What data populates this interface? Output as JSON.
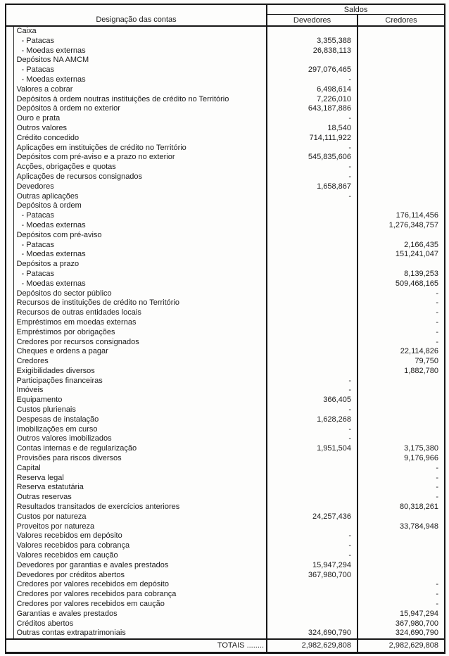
{
  "table": {
    "designacao_header": "Designação das contas",
    "saldos_header": "Saldos",
    "devedores_header": "Devedores",
    "credores_header": "Credores",
    "totals": {
      "label": "TOTAIS ........",
      "devedores": "2,982,629,808",
      "credores": "2,982,629,808"
    },
    "rows": [
      {
        "label": "Caixa",
        "indent": 0,
        "dev": "",
        "cred": ""
      },
      {
        "label": "- Patacas",
        "indent": 1,
        "dev": "3,355,388",
        "cred": ""
      },
      {
        "label": "- Moedas externas",
        "indent": 1,
        "dev": "26,838,113",
        "cred": ""
      },
      {
        "label": "Depósitos NA AMCM",
        "indent": 0,
        "dev": "",
        "cred": ""
      },
      {
        "label": "- Patacas",
        "indent": 1,
        "dev": "297,076,465",
        "cred": ""
      },
      {
        "label": "- Moedas externas",
        "indent": 1,
        "dev": "-",
        "cred": ""
      },
      {
        "label": "Valores a cobrar",
        "indent": 0,
        "dev": "6,498,614",
        "cred": ""
      },
      {
        "label": "Depósitos à ordem noutras instituições de crédito no Território",
        "indent": 0,
        "dev": "7,226,010",
        "cred": ""
      },
      {
        "label": "Depósitos à ordem no exterior",
        "indent": 0,
        "dev": "643,187,886",
        "cred": ""
      },
      {
        "label": "Ouro e prata",
        "indent": 0,
        "dev": "-",
        "cred": ""
      },
      {
        "label": "Outros valores",
        "indent": 0,
        "dev": "18,540",
        "cred": ""
      },
      {
        "label": "Crédito concedido",
        "indent": 0,
        "dev": "714,111,922",
        "cred": ""
      },
      {
        "label": "Aplicações em instituições de crédito no Território",
        "indent": 0,
        "dev": "-",
        "cred": ""
      },
      {
        "label": "Depósitos com pré-aviso e a prazo no exterior",
        "indent": 0,
        "dev": "545,835,606",
        "cred": ""
      },
      {
        "label": "Acções, obrigações e quotas",
        "indent": 0,
        "dev": "-",
        "cred": ""
      },
      {
        "label": "Aplicações de recursos consignados",
        "indent": 0,
        "dev": "-",
        "cred": ""
      },
      {
        "label": "Devedores",
        "indent": 0,
        "dev": "1,658,867",
        "cred": ""
      },
      {
        "label": "Outras aplicações",
        "indent": 0,
        "dev": "-",
        "cred": ""
      },
      {
        "label": "Depósitos à ordem",
        "indent": 0,
        "dev": "",
        "cred": ""
      },
      {
        "label": "- Patacas",
        "indent": 1,
        "dev": "",
        "cred": "176,114,456"
      },
      {
        "label": "- Moedas externas",
        "indent": 1,
        "dev": "",
        "cred": "1,276,348,757"
      },
      {
        "label": "Depósitos com pré-aviso",
        "indent": 0,
        "dev": "",
        "cred": ""
      },
      {
        "label": "- Patacas",
        "indent": 1,
        "dev": "",
        "cred": "2,166,435"
      },
      {
        "label": "- Moedas externas",
        "indent": 1,
        "dev": "",
        "cred": "151,241,047"
      },
      {
        "label": "Depósitos a prazo",
        "indent": 0,
        "dev": "",
        "cred": ""
      },
      {
        "label": "- Patacas",
        "indent": 1,
        "dev": "",
        "cred": "8,139,253"
      },
      {
        "label": "- Moedas externas",
        "indent": 1,
        "dev": "",
        "cred": "509,468,165"
      },
      {
        "label": "Depósitos do sector público",
        "indent": 0,
        "dev": "",
        "cred": "-"
      },
      {
        "label": "Recursos de instituições de crédito no Território",
        "indent": 0,
        "dev": "",
        "cred": "-"
      },
      {
        "label": "Recursos de outras entidades locais",
        "indent": 0,
        "dev": "",
        "cred": "-"
      },
      {
        "label": "Empréstimos em moedas externas",
        "indent": 0,
        "dev": "",
        "cred": "-"
      },
      {
        "label": "Empréstimos por obrigações",
        "indent": 0,
        "dev": "",
        "cred": "-"
      },
      {
        "label": "Credores por recursos consignados",
        "indent": 0,
        "dev": "",
        "cred": "-"
      },
      {
        "label": "Cheques e ordens a pagar",
        "indent": 0,
        "dev": "",
        "cred": "22,114,826"
      },
      {
        "label": "Credores",
        "indent": 0,
        "dev": "",
        "cred": "79,750"
      },
      {
        "label": "Exigibilidades diversos",
        "indent": 0,
        "dev": "",
        "cred": "1,882,780"
      },
      {
        "label": "Participações financeiras",
        "indent": 0,
        "dev": "-",
        "cred": ""
      },
      {
        "label": "Imóveis",
        "indent": 0,
        "dev": "-",
        "cred": ""
      },
      {
        "label": "Equipamento",
        "indent": 0,
        "dev": "366,405",
        "cred": ""
      },
      {
        "label": "Custos plurienais",
        "indent": 0,
        "dev": "-",
        "cred": ""
      },
      {
        "label": "Despesas de instalação",
        "indent": 0,
        "dev": "1,628,268",
        "cred": ""
      },
      {
        "label": "Imobilizações em curso",
        "indent": 0,
        "dev": "-",
        "cred": ""
      },
      {
        "label": "Outros valores imobilizados",
        "indent": 0,
        "dev": "-",
        "cred": ""
      },
      {
        "label": "Contas internas e de regularização",
        "indent": 0,
        "dev": "1,951,504",
        "cred": "3,175,380"
      },
      {
        "label": "Provisões para riscos diversos",
        "indent": 0,
        "dev": "",
        "cred": "9,176,966"
      },
      {
        "label": "Capital",
        "indent": 0,
        "dev": "",
        "cred": "-"
      },
      {
        "label": "Reserva legal",
        "indent": 0,
        "dev": "",
        "cred": "-"
      },
      {
        "label": "Reserva estatutária",
        "indent": 0,
        "dev": "",
        "cred": "-"
      },
      {
        "label": "Outras reservas",
        "indent": 0,
        "dev": "",
        "cred": "-"
      },
      {
        "label": "Resultados transitados de exercícios anteriores",
        "indent": 0,
        "dev": "",
        "cred": "80,318,261"
      },
      {
        "label": "Custos por natureza",
        "indent": 0,
        "dev": "24,257,436",
        "cred": ""
      },
      {
        "label": "Proveitos por natureza",
        "indent": 0,
        "dev": "",
        "cred": "33,784,948"
      },
      {
        "label": "Valores recebidos em depósito",
        "indent": 0,
        "dev": "-",
        "cred": ""
      },
      {
        "label": "Valores recebidos para cobrança",
        "indent": 0,
        "dev": "-",
        "cred": ""
      },
      {
        "label": "Valores recebidos em caução",
        "indent": 0,
        "dev": "-",
        "cred": ""
      },
      {
        "label": "Devedores por garantias e avales prestados",
        "indent": 0,
        "dev": "15,947,294",
        "cred": ""
      },
      {
        "label": "Devedores por créditos abertos",
        "indent": 0,
        "dev": "367,980,700",
        "cred": ""
      },
      {
        "label": "Credores por valores recebidos em depósito",
        "indent": 0,
        "dev": "",
        "cred": "-"
      },
      {
        "label": "Credores por valores recebidos para cobrança",
        "indent": 0,
        "dev": "",
        "cred": "-"
      },
      {
        "label": "Credores por valores recebidos em caução",
        "indent": 0,
        "dev": "",
        "cred": "-"
      },
      {
        "label": "Garantias e avales prestados",
        "indent": 0,
        "dev": "",
        "cred": "15,947,294"
      },
      {
        "label": "Créditos abertos",
        "indent": 0,
        "dev": "",
        "cred": "367,980,700"
      },
      {
        "label": "Outras contas extrapatrimoniais",
        "indent": 0,
        "dev": "324,690,790",
        "cred": "324,690,790"
      }
    ]
  }
}
